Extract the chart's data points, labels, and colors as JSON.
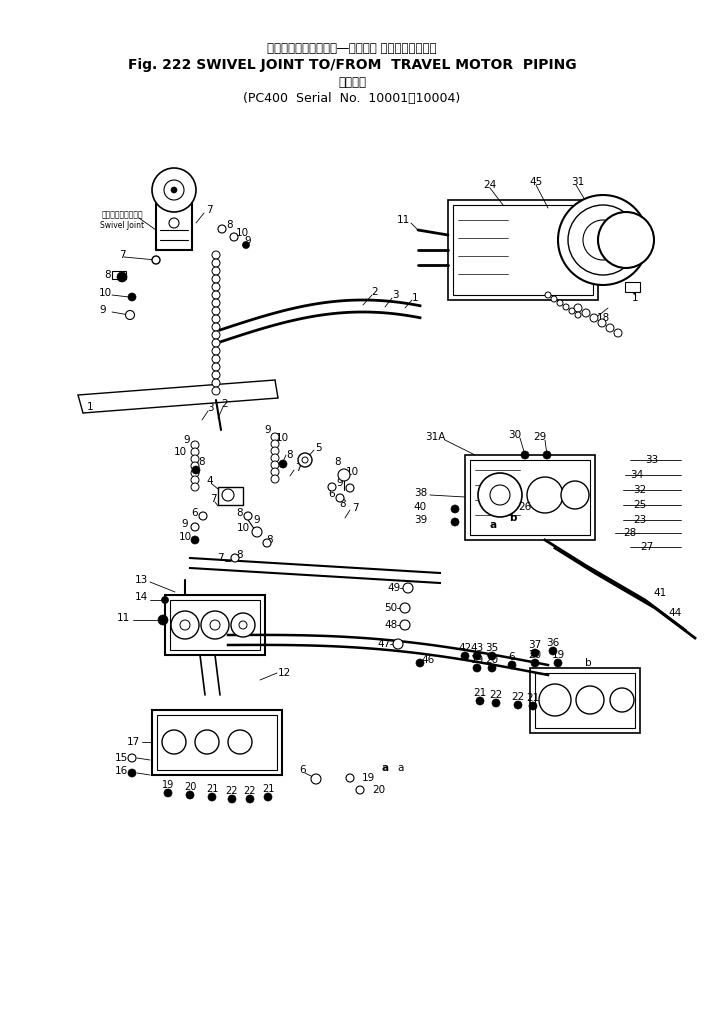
{
  "bg_color": "#ffffff",
  "title_japanese": "スイベルジョイント　―　走　行 モータパイピング",
  "title_english": "Fig. 222 SWIVEL JOINT TO/FROM  TRAVEL MOTOR  PIPING",
  "subtitle_japanese": "適用号機",
  "subtitle_serial": "PC400  Serial  No.  10001～10004",
  "fig_width": 7.04,
  "fig_height": 10.23,
  "dpi": 100
}
